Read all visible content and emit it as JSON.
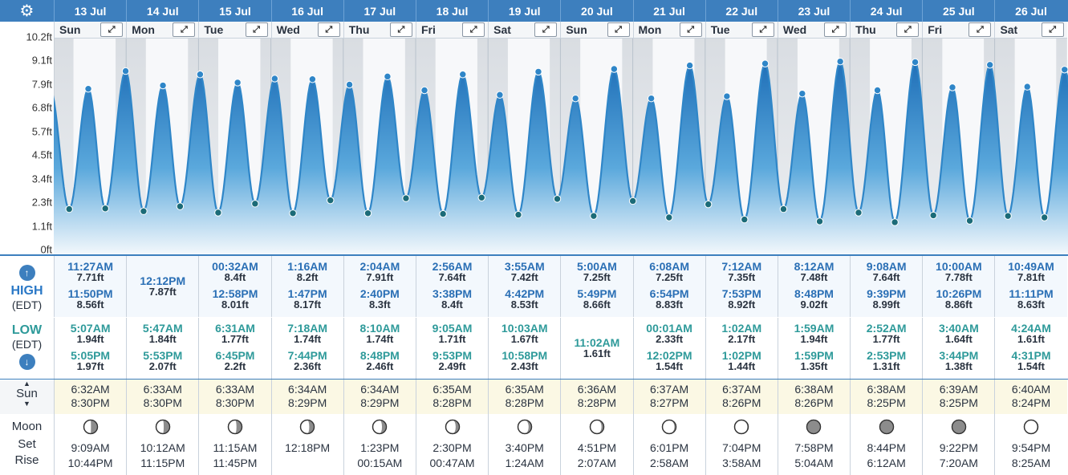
{
  "header": {
    "settings_icon": "gear-icon",
    "dates": [
      "13 Jul",
      "14 Jul",
      "15 Jul",
      "16 Jul",
      "17 Jul",
      "18 Jul",
      "19 Jul",
      "20 Jul",
      "21 Jul",
      "22 Jul",
      "23 Jul",
      "24 Jul",
      "25 Jul",
      "26 Jul"
    ],
    "weekdays": [
      "Sun",
      "Mon",
      "Tue",
      "Wed",
      "Thu",
      "Fri",
      "Sat",
      "Sun",
      "Mon",
      "Tue",
      "Wed",
      "Thu",
      "Fri",
      "Sat"
    ],
    "expand_icon": "expand-arrows-icon"
  },
  "chart_data": {
    "type": "line",
    "title": "",
    "ylabel": "",
    "y_ticks": [
      "0ft",
      "1.1ft",
      "2.3ft",
      "3.4ft",
      "4.5ft",
      "5.7ft",
      "6.8ft",
      "7.9ft",
      "9.1ft",
      "10.2ft"
    ],
    "ylim": [
      0,
      10.2
    ],
    "unit": "ft",
    "series": [
      {
        "points": [
          {
            "day": "13 Jul",
            "time": "5:07AM",
            "height": 1.94
          },
          {
            "day": "13 Jul",
            "time": "11:27AM",
            "height": 7.71
          },
          {
            "day": "13 Jul",
            "time": "5:05PM",
            "height": 1.97
          },
          {
            "day": "13 Jul",
            "time": "11:50PM",
            "height": 8.56
          },
          {
            "day": "14 Jul",
            "time": "5:47AM",
            "height": 1.84
          },
          {
            "day": "14 Jul",
            "time": "12:12PM",
            "height": 7.87
          },
          {
            "day": "14 Jul",
            "time": "5:53PM",
            "height": 2.07
          },
          {
            "day": "15 Jul",
            "time": "00:32AM",
            "height": 8.4
          },
          {
            "day": "15 Jul",
            "time": "6:31AM",
            "height": 1.77
          },
          {
            "day": "15 Jul",
            "time": "12:58PM",
            "height": 8.01
          },
          {
            "day": "15 Jul",
            "time": "6:45PM",
            "height": 2.2
          },
          {
            "day": "16 Jul",
            "time": "1:16AM",
            "height": 8.2
          },
          {
            "day": "16 Jul",
            "time": "7:18AM",
            "height": 1.74
          },
          {
            "day": "16 Jul",
            "time": "1:47PM",
            "height": 8.17
          },
          {
            "day": "16 Jul",
            "time": "7:44PM",
            "height": 2.36
          },
          {
            "day": "17 Jul",
            "time": "2:04AM",
            "height": 7.91
          },
          {
            "day": "17 Jul",
            "time": "8:10AM",
            "height": 1.74
          },
          {
            "day": "17 Jul",
            "time": "2:40PM",
            "height": 8.3
          },
          {
            "day": "17 Jul",
            "time": "8:48PM",
            "height": 2.46
          },
          {
            "day": "18 Jul",
            "time": "2:56AM",
            "height": 7.64
          },
          {
            "day": "18 Jul",
            "time": "9:05AM",
            "height": 1.71
          },
          {
            "day": "18 Jul",
            "time": "3:38PM",
            "height": 8.4
          },
          {
            "day": "18 Jul",
            "time": "9:53PM",
            "height": 2.49
          },
          {
            "day": "19 Jul",
            "time": "3:55AM",
            "height": 7.42
          },
          {
            "day": "19 Jul",
            "time": "10:03AM",
            "height": 1.67
          },
          {
            "day": "19 Jul",
            "time": "4:42PM",
            "height": 8.53
          },
          {
            "day": "19 Jul",
            "time": "10:58PM",
            "height": 2.43
          },
          {
            "day": "20 Jul",
            "time": "5:00AM",
            "height": 7.25
          },
          {
            "day": "20 Jul",
            "time": "11:02AM",
            "height": 1.61
          },
          {
            "day": "20 Jul",
            "time": "5:49PM",
            "height": 8.66
          },
          {
            "day": "21 Jul",
            "time": "00:01AM",
            "height": 2.33
          },
          {
            "day": "21 Jul",
            "time": "6:08AM",
            "height": 7.25
          },
          {
            "day": "21 Jul",
            "time": "12:02PM",
            "height": 1.54
          },
          {
            "day": "21 Jul",
            "time": "6:54PM",
            "height": 8.83
          },
          {
            "day": "22 Jul",
            "time": "1:02AM",
            "height": 2.17
          },
          {
            "day": "22 Jul",
            "time": "7:12AM",
            "height": 7.35
          },
          {
            "day": "22 Jul",
            "time": "1:02PM",
            "height": 1.44
          },
          {
            "day": "22 Jul",
            "time": "7:53PM",
            "height": 8.92
          },
          {
            "day": "23 Jul",
            "time": "1:59AM",
            "height": 1.94
          },
          {
            "day": "23 Jul",
            "time": "8:12AM",
            "height": 7.48
          },
          {
            "day": "23 Jul",
            "time": "1:59PM",
            "height": 1.35
          },
          {
            "day": "23 Jul",
            "time": "8:48PM",
            "height": 9.02
          },
          {
            "day": "24 Jul",
            "time": "2:52AM",
            "height": 1.77
          },
          {
            "day": "24 Jul",
            "time": "9:08AM",
            "height": 7.64
          },
          {
            "day": "24 Jul",
            "time": "2:53PM",
            "height": 1.31
          },
          {
            "day": "24 Jul",
            "time": "9:39PM",
            "height": 8.99
          },
          {
            "day": "25 Jul",
            "time": "3:40AM",
            "height": 1.64
          },
          {
            "day": "25 Jul",
            "time": "10:00AM",
            "height": 7.78
          },
          {
            "day": "25 Jul",
            "time": "3:44PM",
            "height": 1.38
          },
          {
            "day": "25 Jul",
            "time": "10:26PM",
            "height": 8.86
          },
          {
            "day": "26 Jul",
            "time": "4:24AM",
            "height": 1.61
          },
          {
            "day": "26 Jul",
            "time": "10:49AM",
            "height": 7.81
          },
          {
            "day": "26 Jul",
            "time": "4:31PM",
            "height": 1.54
          },
          {
            "day": "26 Jul",
            "time": "11:11PM",
            "height": 8.63
          }
        ]
      }
    ],
    "colors": {
      "tide": "#2f86c8",
      "point": "#1b6b78"
    }
  },
  "high": {
    "label": "HIGH",
    "tz": "(EDT)",
    "icon": "arrow-up-icon",
    "days": [
      [
        {
          "t": "11:27AM",
          "h": "7.71ft"
        },
        {
          "t": "11:50PM",
          "h": "8.56ft"
        }
      ],
      [
        {
          "t": "12:12PM",
          "h": "7.87ft"
        }
      ],
      [
        {
          "t": "00:32AM",
          "h": "8.4ft"
        },
        {
          "t": "12:58PM",
          "h": "8.01ft"
        }
      ],
      [
        {
          "t": "1:16AM",
          "h": "8.2ft"
        },
        {
          "t": "1:47PM",
          "h": "8.17ft"
        }
      ],
      [
        {
          "t": "2:04AM",
          "h": "7.91ft"
        },
        {
          "t": "2:40PM",
          "h": "8.3ft"
        }
      ],
      [
        {
          "t": "2:56AM",
          "h": "7.64ft"
        },
        {
          "t": "3:38PM",
          "h": "8.4ft"
        }
      ],
      [
        {
          "t": "3:55AM",
          "h": "7.42ft"
        },
        {
          "t": "4:42PM",
          "h": "8.53ft"
        }
      ],
      [
        {
          "t": "5:00AM",
          "h": "7.25ft"
        },
        {
          "t": "5:49PM",
          "h": "8.66ft"
        }
      ],
      [
        {
          "t": "6:08AM",
          "h": "7.25ft"
        },
        {
          "t": "6:54PM",
          "h": "8.83ft"
        }
      ],
      [
        {
          "t": "7:12AM",
          "h": "7.35ft"
        },
        {
          "t": "7:53PM",
          "h": "8.92ft"
        }
      ],
      [
        {
          "t": "8:12AM",
          "h": "7.48ft"
        },
        {
          "t": "8:48PM",
          "h": "9.02ft"
        }
      ],
      [
        {
          "t": "9:08AM",
          "h": "7.64ft"
        },
        {
          "t": "9:39PM",
          "h": "8.99ft"
        }
      ],
      [
        {
          "t": "10:00AM",
          "h": "7.78ft"
        },
        {
          "t": "10:26PM",
          "h": "8.86ft"
        }
      ],
      [
        {
          "t": "10:49AM",
          "h": "7.81ft"
        },
        {
          "t": "11:11PM",
          "h": "8.63ft"
        }
      ]
    ]
  },
  "low": {
    "label": "LOW",
    "tz": "(EDT)",
    "icon": "arrow-down-icon",
    "days": [
      [
        {
          "t": "5:07AM",
          "h": "1.94ft"
        },
        {
          "t": "5:05PM",
          "h": "1.97ft"
        }
      ],
      [
        {
          "t": "5:47AM",
          "h": "1.84ft"
        },
        {
          "t": "5:53PM",
          "h": "2.07ft"
        }
      ],
      [
        {
          "t": "6:31AM",
          "h": "1.77ft"
        },
        {
          "t": "6:45PM",
          "h": "2.2ft"
        }
      ],
      [
        {
          "t": "7:18AM",
          "h": "1.74ft"
        },
        {
          "t": "7:44PM",
          "h": "2.36ft"
        }
      ],
      [
        {
          "t": "8:10AM",
          "h": "1.74ft"
        },
        {
          "t": "8:48PM",
          "h": "2.46ft"
        }
      ],
      [
        {
          "t": "9:05AM",
          "h": "1.71ft"
        },
        {
          "t": "9:53PM",
          "h": "2.49ft"
        }
      ],
      [
        {
          "t": "10:03AM",
          "h": "1.67ft"
        },
        {
          "t": "10:58PM",
          "h": "2.43ft"
        }
      ],
      [
        {
          "t": "11:02AM",
          "h": "1.61ft"
        }
      ],
      [
        {
          "t": "00:01AM",
          "h": "2.33ft"
        },
        {
          "t": "12:02PM",
          "h": "1.54ft"
        }
      ],
      [
        {
          "t": "1:02AM",
          "h": "2.17ft"
        },
        {
          "t": "1:02PM",
          "h": "1.44ft"
        }
      ],
      [
        {
          "t": "1:59AM",
          "h": "1.94ft"
        },
        {
          "t": "1:59PM",
          "h": "1.35ft"
        }
      ],
      [
        {
          "t": "2:52AM",
          "h": "1.77ft"
        },
        {
          "t": "2:53PM",
          "h": "1.31ft"
        }
      ],
      [
        {
          "t": "3:40AM",
          "h": "1.64ft"
        },
        {
          "t": "3:44PM",
          "h": "1.38ft"
        }
      ],
      [
        {
          "t": "4:24AM",
          "h": "1.61ft"
        },
        {
          "t": "4:31PM",
          "h": "1.54ft"
        }
      ]
    ]
  },
  "sun": {
    "label": "Sun",
    "icons": [
      "sun-arrow-up-icon",
      "sun-arrow-down-icon"
    ],
    "days": [
      {
        "rise": "6:32AM",
        "set": "8:30PM"
      },
      {
        "rise": "6:33AM",
        "set": "8:30PM"
      },
      {
        "rise": "6:33AM",
        "set": "8:30PM"
      },
      {
        "rise": "6:34AM",
        "set": "8:29PM"
      },
      {
        "rise": "6:34AM",
        "set": "8:29PM"
      },
      {
        "rise": "6:35AM",
        "set": "8:28PM"
      },
      {
        "rise": "6:35AM",
        "set": "8:28PM"
      },
      {
        "rise": "6:36AM",
        "set": "8:28PM"
      },
      {
        "rise": "6:37AM",
        "set": "8:27PM"
      },
      {
        "rise": "6:37AM",
        "set": "8:26PM"
      },
      {
        "rise": "6:38AM",
        "set": "8:26PM"
      },
      {
        "rise": "6:38AM",
        "set": "8:25PM"
      },
      {
        "rise": "6:39AM",
        "set": "8:25PM"
      },
      {
        "rise": "6:40AM",
        "set": "8:24PM"
      }
    ]
  },
  "moon": {
    "label": "Moon",
    "set_label": "Set",
    "rise_label": "Rise",
    "phase_icon": "moon-phase-icon",
    "days": [
      {
        "phase": 0.52,
        "set": "9:09AM",
        "rise": "10:44PM"
      },
      {
        "phase": 0.56,
        "set": "10:12AM",
        "rise": "11:15PM"
      },
      {
        "phase": 0.6,
        "set": "11:15AM",
        "rise": "11:45PM"
      },
      {
        "phase": 0.64,
        "set": "12:18PM",
        "rise": ""
      },
      {
        "phase": 0.68,
        "set": "1:23PM",
        "rise": "00:15AM"
      },
      {
        "phase": 0.73,
        "set": "2:30PM",
        "rise": "00:47AM"
      },
      {
        "phase": 0.78,
        "set": "3:40PM",
        "rise": "1:24AM"
      },
      {
        "phase": 0.83,
        "set": "4:51PM",
        "rise": "2:07AM"
      },
      {
        "phase": 0.88,
        "set": "6:01PM",
        "rise": "2:58AM"
      },
      {
        "phase": 0.93,
        "set": "7:04PM",
        "rise": "3:58AM"
      },
      {
        "phase": 0.97,
        "set": "7:58PM",
        "rise": "5:04AM"
      },
      {
        "phase": 1.0,
        "set": "8:44PM",
        "rise": "6:12AM"
      },
      {
        "phase": 0.97,
        "set": "9:22PM",
        "rise": "7:20AM"
      },
      {
        "phase": 0.93,
        "set": "9:54PM",
        "rise": "8:25AM"
      }
    ]
  }
}
